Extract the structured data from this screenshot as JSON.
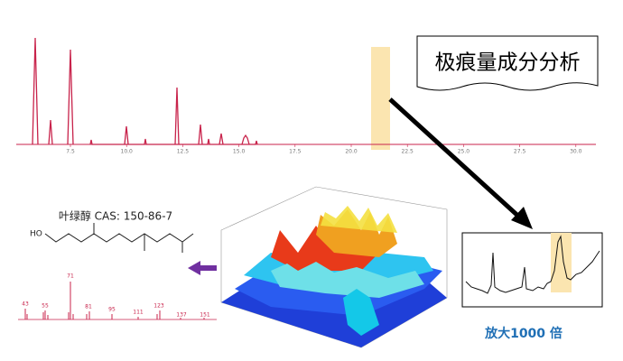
{
  "chromatogram": {
    "x_ticks": [
      "7.5",
      "10.0",
      "12.5",
      "15.0",
      "17.5",
      "20.0",
      "22.5",
      "25.0",
      "27.5",
      "30.0"
    ]
  },
  "callout": "极痕量成分分析",
  "compound": {
    "name": "叶绿醇 CAS: 150-86-7",
    "hydroxyl": "HO"
  },
  "mass_spectrum": {
    "peak_labels": [
      "43",
      "55",
      "71",
      "81",
      "95",
      "111",
      "123",
      "137",
      "151"
    ]
  },
  "zoom_caption": "放大1000 倍"
}
